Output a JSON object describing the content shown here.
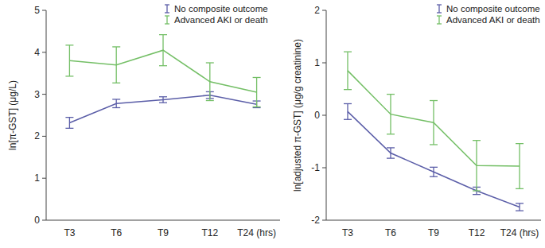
{
  "chart_data": [
    {
      "type": "line",
      "y_label": "ln[π-GST] (μg/L)",
      "categories": [
        "T3",
        "T6",
        "T9",
        "T12",
        "T24 (hrs)"
      ],
      "ylim": [
        0,
        5
      ],
      "yticks": [
        0,
        1,
        2,
        3,
        4,
        5
      ],
      "grid": false,
      "legend": "upper right",
      "marker": "none",
      "series": [
        {
          "name": "No composite outcome",
          "color": "#5b5ea8",
          "values": [
            2.32,
            2.78,
            2.87,
            2.98,
            2.76
          ],
          "errors": [
            0.13,
            0.1,
            0.07,
            0.08,
            0.08
          ]
        },
        {
          "name": "Advanced AKI or death",
          "color": "#74bf66",
          "values": [
            3.8,
            3.7,
            4.05,
            3.3,
            3.05
          ],
          "errors": [
            0.37,
            0.43,
            0.37,
            0.45,
            0.35
          ]
        }
      ]
    },
    {
      "type": "line",
      "y_label": "ln[adjusted π-GST] (μg/g creatinine)",
      "categories": [
        "T3",
        "T6",
        "T9",
        "T12",
        "T24 (hrs)"
      ],
      "ylim": [
        -2,
        2
      ],
      "yticks": [
        -2,
        -1,
        0,
        1,
        2
      ],
      "grid": false,
      "legend": "upper right",
      "marker": "none",
      "series": [
        {
          "name": "No composite outcome",
          "color": "#5b5ea8",
          "values": [
            0.07,
            -0.72,
            -1.08,
            -1.44,
            -1.75
          ],
          "errors": [
            0.15,
            0.1,
            0.09,
            0.07,
            0.07
          ]
        },
        {
          "name": "Advanced AKI or death",
          "color": "#74bf66",
          "values": [
            0.85,
            0.02,
            -0.14,
            -0.96,
            -0.97
          ],
          "errors": [
            0.36,
            0.38,
            0.42,
            0.48,
            0.43
          ]
        }
      ]
    }
  ]
}
